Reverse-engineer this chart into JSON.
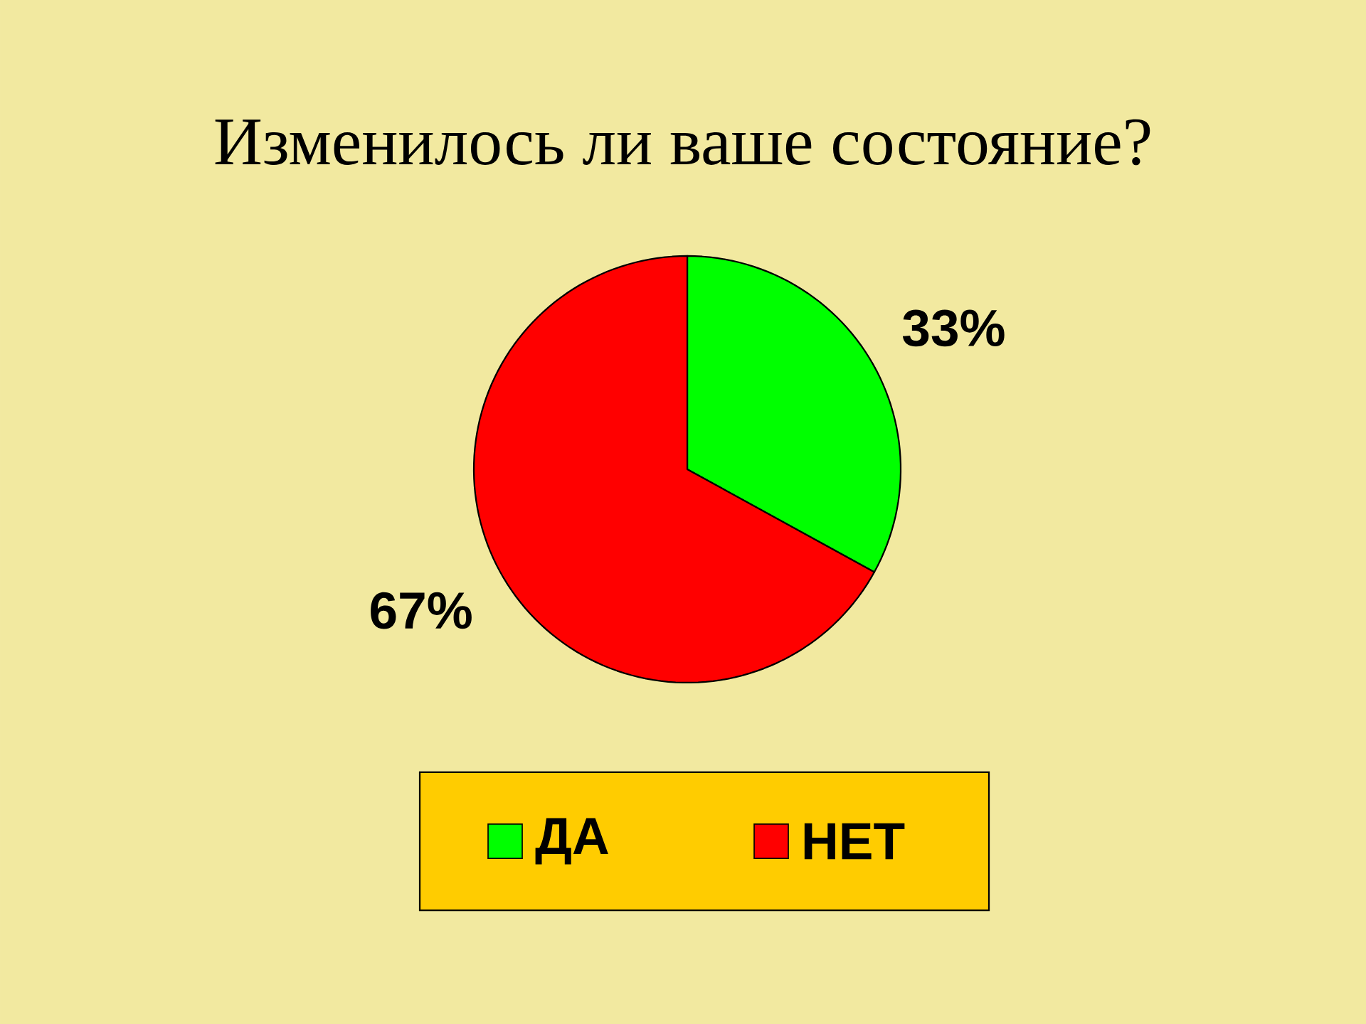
{
  "chart_data": {
    "type": "pie",
    "title": "Изменилось ли ваше состояние?",
    "categories": [
      "ДА",
      "НЕТ"
    ],
    "values": [
      33,
      67
    ],
    "value_labels": [
      "33%",
      "67%"
    ],
    "colors": [
      "#00ff00",
      "#ff0000"
    ],
    "legend": "bottom"
  }
}
